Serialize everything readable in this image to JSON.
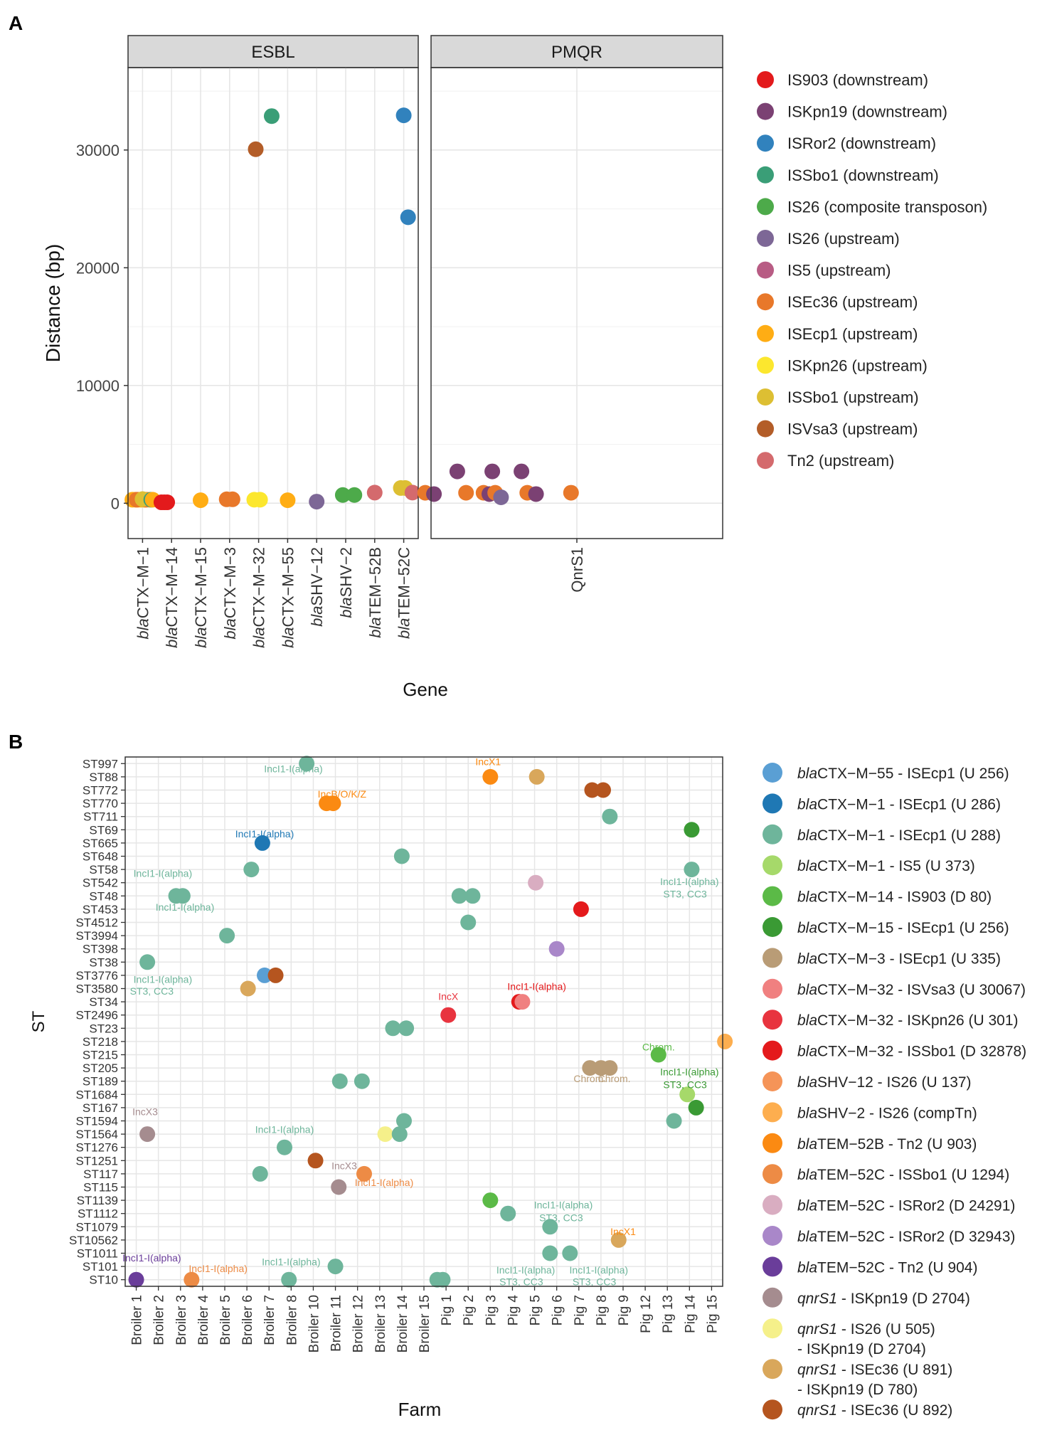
{
  "panel_labels": {
    "a": "A",
    "b": "B"
  },
  "colors": {
    "grid": "#e6e6e6",
    "strip_fill": "#d9d9d9",
    "panel_border": "#333333"
  },
  "chart_data": [
    {
      "id": "A",
      "type": "scatter",
      "title": "",
      "xlabel": "Gene",
      "ylabel": "Distance (bp)",
      "ylim": [
        -3000,
        37000
      ],
      "yticks": [
        0,
        10000,
        20000,
        30000
      ],
      "grid": true,
      "legend_position": "right",
      "facets": [
        {
          "strip": "ESBL",
          "categories": [
            {
              "prefix": "bla",
              "name": "CTX−M−1"
            },
            {
              "prefix": "bla",
              "name": "CTX−M−14"
            },
            {
              "prefix": "bla",
              "name": "CTX−M−15"
            },
            {
              "prefix": "bla",
              "name": "CTX−M−3"
            },
            {
              "prefix": "bla",
              "name": "CTX−M−32"
            },
            {
              "prefix": "bla",
              "name": "CTX−M−55"
            },
            {
              "prefix": "bla",
              "name": "SHV−12"
            },
            {
              "prefix": "bla",
              "name": "SHV−2"
            },
            {
              "prefix": "bla",
              "name": "TEM−52B"
            },
            {
              "prefix": "bla",
              "name": "TEM−52C"
            }
          ],
          "points": [
            {
              "x": 0.65,
              "y": 300,
              "s": 8
            },
            {
              "x": 0.75,
              "y": 300,
              "s": 8
            },
            {
              "x": 0.85,
              "y": 300,
              "s": 8
            },
            {
              "x": 0.95,
              "y": 300,
              "s": 8
            },
            {
              "x": 1.05,
              "y": 300,
              "s": 8
            },
            {
              "x": 1.15,
              "y": 300,
              "s": 8
            },
            {
              "x": 1.25,
              "y": 300,
              "s": 8
            },
            {
              "x": 0.8,
              "y": 300,
              "s": 7
            },
            {
              "x": 1.1,
              "y": 300,
              "s": 7
            },
            {
              "x": 1.0,
              "y": 350,
              "s": 10
            },
            {
              "x": 1.3,
              "y": 300,
              "s": 3
            },
            {
              "x": 1.35,
              "y": 300,
              "s": 8
            },
            {
              "x": 1.65,
              "y": 80,
              "s": 0
            },
            {
              "x": 1.75,
              "y": 80,
              "s": 0
            },
            {
              "x": 1.85,
              "y": 80,
              "s": 0
            },
            {
              "x": 3.0,
              "y": 256,
              "s": 8
            },
            {
              "x": 3.9,
              "y": 335,
              "s": 7
            },
            {
              "x": 4.1,
              "y": 335,
              "s": 7
            },
            {
              "x": 4.9,
              "y": 30067,
              "s": 11
            },
            {
              "x": 4.85,
              "y": 301,
              "s": 9
            },
            {
              "x": 5.05,
              "y": 301,
              "s": 9
            },
            {
              "x": 5.45,
              "y": 32878,
              "s": 3
            },
            {
              "x": 6.0,
              "y": 256,
              "s": 8
            },
            {
              "x": 7.0,
              "y": 137,
              "s": 5
            },
            {
              "x": 7.9,
              "y": 700,
              "s": 4
            },
            {
              "x": 8.3,
              "y": 700,
              "s": 4
            },
            {
              "x": 9.0,
              "y": 903,
              "s": 12
            },
            {
              "x": 9.9,
              "y": 1294,
              "s": 10
            },
            {
              "x": 10.05,
              "y": 1294,
              "s": 10
            },
            {
              "x": 10.0,
              "y": 32943,
              "s": 2
            },
            {
              "x": 10.15,
              "y": 24291,
              "s": 2
            },
            {
              "x": 10.3,
              "y": 904,
              "s": 12
            }
          ]
        },
        {
          "strip": "PMQR",
          "categories": [
            {
              "prefix": "",
              "name": "QnrS1"
            }
          ],
          "points": [
            {
              "x": 0.48,
              "y": 891,
              "s": 7
            },
            {
              "x": 0.51,
              "y": 780,
              "s": 1
            },
            {
              "x": 0.59,
              "y": 2704,
              "s": 1
            },
            {
              "x": 0.62,
              "y": 891,
              "s": 7
            },
            {
              "x": 0.68,
              "y": 891,
              "s": 7
            },
            {
              "x": 0.7,
              "y": 780,
              "s": 1
            },
            {
              "x": 0.71,
              "y": 2704,
              "s": 1
            },
            {
              "x": 0.72,
              "y": 891,
              "s": 7
            },
            {
              "x": 0.74,
              "y": 505,
              "s": 5
            },
            {
              "x": 0.81,
              "y": 2704,
              "s": 1
            },
            {
              "x": 0.83,
              "y": 891,
              "s": 7
            },
            {
              "x": 0.86,
              "y": 780,
              "s": 1
            },
            {
              "x": 0.98,
              "y": 892,
              "s": 7
            }
          ]
        }
      ],
      "legend": [
        {
          "label": "IS903 (downstream)",
          "color": "#e31a1c"
        },
        {
          "label": "ISKpn19 (downstream)",
          "color": "#7b4173"
        },
        {
          "label": "ISRor2 (downstream)",
          "color": "#3182bd"
        },
        {
          "label": "ISSbo1 (downstream)",
          "color": "#3a9e77"
        },
        {
          "label": "IS26 (composite transposon)",
          "color": "#4daa4a"
        },
        {
          "label": "IS26 (upstream)",
          "color": "#7d6796"
        },
        {
          "label": "IS5 (upstream)",
          "color": "#b85c84"
        },
        {
          "label": "ISEc36 (upstream)",
          "color": "#e8782a"
        },
        {
          "label": "ISEcp1 (upstream)",
          "color": "#ffad14"
        },
        {
          "label": "ISKpn26 (upstream)",
          "color": "#fce72e"
        },
        {
          "label": "ISSbo1 (upstream)",
          "color": "#ddbf33"
        },
        {
          "label": "ISVsa3 (upstream)",
          "color": "#b35d28"
        },
        {
          "label": "Tn2 (upstream)",
          "color": "#d46a6d"
        }
      ]
    },
    {
      "id": "B",
      "type": "scatter",
      "title": "",
      "xlabel": "Farm",
      "ylabel": "ST",
      "grid": true,
      "legend_position": "right",
      "x_categories": [
        "Broiler 1",
        "Broiler 2",
        "Broiler 3",
        "Broiler 4",
        "Broiler 5",
        "Broiler 6",
        "Broiler 7",
        "Broiler 8",
        "Broiler 10",
        "Broiler 11",
        "Broiler 12",
        "Broiler 13",
        "Broiler 14",
        "Broiler 15",
        "Pig 1",
        "Pig 2",
        "Pig 3",
        "Pig 4",
        "Pig 5",
        "Pig 6",
        "Pig 7",
        "Pig 8",
        "Pig 9",
        "Pig 12",
        "Pig 13",
        "Pig 14",
        "Pig 15"
      ],
      "y_categories": [
        "ST10",
        "ST101",
        "ST1011",
        "ST10562",
        "ST1079",
        "ST1112",
        "ST1139",
        "ST115",
        "ST117",
        "ST1251",
        "ST1276",
        "ST1564",
        "ST1594",
        "ST167",
        "ST1684",
        "ST189",
        "ST205",
        "ST215",
        "ST218",
        "ST23",
        "ST2496",
        "ST34",
        "ST3580",
        "ST3776",
        "ST38",
        "ST398",
        "ST3994",
        "ST4512",
        "ST453",
        "ST48",
        "ST542",
        "ST58",
        "ST648",
        "ST665",
        "ST69",
        "ST711",
        "ST770",
        "ST772",
        "ST88",
        "ST997"
      ],
      "points": [
        {
          "x": 1.0,
          "y": 1,
          "s": 16
        },
        {
          "x": 3.5,
          "y": 1,
          "s": 13
        },
        {
          "x": 7.9,
          "y": 1,
          "s": 2
        },
        {
          "x": 14.6,
          "y": 1,
          "s": 2
        },
        {
          "x": 14.85,
          "y": 1,
          "s": 2
        },
        {
          "x": 10.0,
          "y": 2,
          "s": 2
        },
        {
          "x": 19.7,
          "y": 3,
          "s": 2
        },
        {
          "x": 20.6,
          "y": 3,
          "s": 2
        },
        {
          "x": 22.8,
          "y": 4,
          "s": 19
        },
        {
          "x": 19.7,
          "y": 5,
          "s": 2
        },
        {
          "x": 17.8,
          "y": 6,
          "s": 2
        },
        {
          "x": 17.0,
          "y": 7,
          "s": 4
        },
        {
          "x": 10.15,
          "y": 8,
          "s": 17
        },
        {
          "x": 6.6,
          "y": 9,
          "s": 2
        },
        {
          "x": 11.3,
          "y": 9,
          "s": 13
        },
        {
          "x": 9.1,
          "y": 10,
          "s": 20
        },
        {
          "x": 7.7,
          "y": 11,
          "s": 2
        },
        {
          "x": 12.25,
          "y": 12,
          "s": 18
        },
        {
          "x": 12.9,
          "y": 12,
          "s": 2
        },
        {
          "x": 1.5,
          "y": 12,
          "s": 17
        },
        {
          "x": 13.1,
          "y": 13,
          "s": 2
        },
        {
          "x": 25.3,
          "y": 13,
          "s": 2
        },
        {
          "x": 26.3,
          "y": 14,
          "s": 5
        },
        {
          "x": 25.9,
          "y": 15,
          "s": 3
        },
        {
          "x": 10.2,
          "y": 16,
          "s": 2
        },
        {
          "x": 11.2,
          "y": 16,
          "s": 2
        },
        {
          "x": 21.5,
          "y": 17,
          "s": 6
        },
        {
          "x": 22.0,
          "y": 17,
          "s": 6
        },
        {
          "x": 22.4,
          "y": 17,
          "s": 6
        },
        {
          "x": 24.6,
          "y": 18,
          "s": 4
        },
        {
          "x": 27.6,
          "y": 19,
          "s": 11
        },
        {
          "x": 12.6,
          "y": 20,
          "s": 2
        },
        {
          "x": 13.2,
          "y": 20,
          "s": 2
        },
        {
          "x": 15.1,
          "y": 21,
          "s": 8
        },
        {
          "x": 18.3,
          "y": 22,
          "s": 9
        },
        {
          "x": 18.45,
          "y": 22,
          "s": 7
        },
        {
          "x": 6.05,
          "y": 23,
          "s": 19
        },
        {
          "x": 6.8,
          "y": 24,
          "s": 0
        },
        {
          "x": 7.3,
          "y": 24,
          "s": 20
        },
        {
          "x": 1.5,
          "y": 25,
          "s": 2
        },
        {
          "x": 20.0,
          "y": 26,
          "s": 15
        },
        {
          "x": 5.1,
          "y": 27,
          "s": 2
        },
        {
          "x": 16.0,
          "y": 28,
          "s": 2
        },
        {
          "x": 21.1,
          "y": 29,
          "s": 9
        },
        {
          "x": 15.6,
          "y": 30,
          "s": 2
        },
        {
          "x": 16.2,
          "y": 30,
          "s": 2
        },
        {
          "x": 2.8,
          "y": 30,
          "s": 2
        },
        {
          "x": 3.1,
          "y": 30,
          "s": 2
        },
        {
          "x": 19.05,
          "y": 31,
          "s": 14
        },
        {
          "x": 6.2,
          "y": 32,
          "s": 2
        },
        {
          "x": 26.1,
          "y": 32,
          "s": 2
        },
        {
          "x": 13.0,
          "y": 33,
          "s": 2
        },
        {
          "x": 6.7,
          "y": 34,
          "s": 1
        },
        {
          "x": 26.1,
          "y": 35,
          "s": 5
        },
        {
          "x": 22.4,
          "y": 36,
          "s": 2
        },
        {
          "x": 9.6,
          "y": 37,
          "s": 12
        },
        {
          "x": 9.9,
          "y": 37,
          "s": 12
        },
        {
          "x": 21.6,
          "y": 38,
          "s": 20
        },
        {
          "x": 22.1,
          "y": 38,
          "s": 20
        },
        {
          "x": 17.0,
          "y": 39,
          "s": 12
        },
        {
          "x": 19.1,
          "y": 39,
          "s": 19
        },
        {
          "x": 8.7,
          "y": 40,
          "s": 2
        }
      ],
      "annotations": [
        {
          "text": "IncI1-I(alpha)",
          "x": 8.1,
          "y": 39.6,
          "s": 2
        },
        {
          "text": "IncX1",
          "x": 16.9,
          "y": 40.15,
          "s": 12
        },
        {
          "text": "IncB/O/K/Z",
          "x": 10.3,
          "y": 37.7,
          "s": 12
        },
        {
          "text": "IncI1-I(alpha)",
          "x": 6.8,
          "y": 34.7,
          "s": 1
        },
        {
          "text": "IncI1-I(alpha)",
          "x": 2.2,
          "y": 31.7,
          "s": 2
        },
        {
          "text": "IncI1-I(alpha)",
          "x": 3.2,
          "y": 29.15,
          "s": 2
        },
        {
          "text": "IncI1-I(alpha)",
          "x": 26.0,
          "y": 31.1,
          "s": 2
        },
        {
          "text": "ST3, CC3",
          "x": 25.8,
          "y": 30.15,
          "s": 2
        },
        {
          "text": "IncI1-I(alpha)",
          "x": 2.2,
          "y": 23.7,
          "s": 2
        },
        {
          "text": "ST3, CC3",
          "x": 1.7,
          "y": 22.8,
          "s": 2
        },
        {
          "text": "IncX",
          "x": 15.1,
          "y": 22.4,
          "s": 8
        },
        {
          "text": "IncI1-I(alpha)",
          "x": 19.1,
          "y": 23.15,
          "s": 9
        },
        {
          "text": "Chrom.",
          "x": 24.6,
          "y": 18.6,
          "s": 4
        },
        {
          "text": "IncI1-I(alpha)",
          "x": 26.0,
          "y": 16.7,
          "s": 5
        },
        {
          "text": "ST3, CC3",
          "x": 25.8,
          "y": 15.75,
          "s": 5
        },
        {
          "text": "Chrom.",
          "x": 21.5,
          "y": 16.2,
          "s": 6
        },
        {
          "text": "Chrom.",
          "x": 22.6,
          "y": 16.2,
          "s": 6
        },
        {
          "text": "IncX3",
          "x": 1.4,
          "y": 13.7,
          "s": 17
        },
        {
          "text": "IncI1-I(alpha)",
          "x": 7.7,
          "y": 12.35,
          "s": 2
        },
        {
          "text": "IncX3",
          "x": 10.4,
          "y": 9.6,
          "s": 17
        },
        {
          "text": "IncI1-I(alpha)",
          "x": 12.2,
          "y": 8.35,
          "s": 13
        },
        {
          "text": "IncI1-I(alpha)",
          "x": 20.3,
          "y": 6.65,
          "s": 2
        },
        {
          "text": "ST3, CC3",
          "x": 20.2,
          "y": 5.7,
          "s": 2
        },
        {
          "text": "IncX1",
          "x": 23.0,
          "y": 4.65,
          "s": 12
        },
        {
          "text": "IncI1-I(alpha)",
          "x": 1.7,
          "y": 2.65,
          "s": 16
        },
        {
          "text": "IncI1-I(alpha)",
          "x": 4.7,
          "y": 1.85,
          "s": 13
        },
        {
          "text": "IncI1-I(alpha)",
          "x": 8.0,
          "y": 2.35,
          "s": 2
        },
        {
          "text": "IncI1-I(alpha)",
          "x": 18.6,
          "y": 1.75,
          "s": 2
        },
        {
          "text": "ST3, CC3",
          "x": 18.4,
          "y": 0.85,
          "s": 2
        },
        {
          "text": "IncI1-I(alpha)",
          "x": 21.9,
          "y": 1.75,
          "s": 2
        },
        {
          "text": "ST3, CC3",
          "x": 21.7,
          "y": 0.85,
          "s": 2
        }
      ],
      "legend": [
        {
          "prefix": "bla",
          "label": "CTX−M−55 - ISEcp1 (U 256)",
          "color": "#5a9fd4"
        },
        {
          "prefix": "bla",
          "label": "CTX−M−1 - ISEcp1 (U 286)",
          "color": "#1f78b4"
        },
        {
          "prefix": "bla",
          "label": "CTX−M−1 - ISEcp1 (U 288)",
          "color": "#6eb59b"
        },
        {
          "prefix": "bla",
          "label": "CTX−M−1 - IS5 (U 373)",
          "color": "#a6d96a"
        },
        {
          "prefix": "bla",
          "label": "CTX−M−14 - IS903 (D 80)",
          "color": "#5bba47"
        },
        {
          "prefix": "bla",
          "label": "CTX−M−15 - ISEcp1 (U 256)",
          "color": "#3a9a34"
        },
        {
          "prefix": "bla",
          "label": "CTX−M−3 - ISEcp1 (U 335)",
          "color": "#b99c76"
        },
        {
          "prefix": "bla",
          "label": "CTX−M−32 - ISVsa3 (U 30067)",
          "color": "#f08080"
        },
        {
          "prefix": "bla",
          "label": "CTX−M−32 - ISKpn26 (U 301)",
          "color": "#e8343f"
        },
        {
          "prefix": "bla",
          "label": "CTX−M−32 - ISSbo1 (D 32878)",
          "color": "#e41a1c"
        },
        {
          "prefix": "bla",
          "label": "SHV−12 - IS26 (U 137)",
          "color": "#f59458"
        },
        {
          "prefix": "bla",
          "label": "SHV−2 - IS26 (compTn)",
          "color": "#fdae4f"
        },
        {
          "prefix": "bla",
          "label": "TEM−52B - Tn2 (U 903)",
          "color": "#fb8a12"
        },
        {
          "prefix": "bla",
          "label": "TEM−52C - ISSbo1 (U 1294)",
          "color": "#ed8b45"
        },
        {
          "prefix": "bla",
          "label": "TEM−52C - ISRor2 (D 24291)",
          "color": "#d9adc1"
        },
        {
          "prefix": "bla",
          "label": "TEM−52C - ISRor2 (D 32943)",
          "color": "#a987c9"
        },
        {
          "prefix": "bla",
          "label": "TEM−52C - Tn2 (U 904)",
          "color": "#6a3d9a"
        },
        {
          "prefix": "qnrS1",
          "label": " - ISKpn19 (D 2704)",
          "color": "#a58c8f"
        },
        {
          "prefix": "qnrS1",
          "label": " - IS26 (U 505)",
          "label2": "- ISKpn19 (D 2704)",
          "color": "#f5f08a"
        },
        {
          "prefix": "qnrS1",
          "label": " - ISEc36 (U 891)",
          "label2": "- ISKpn19 (D 780)",
          "color": "#d9a75b"
        },
        {
          "prefix": "qnrS1",
          "label": " - ISEc36 (U 892)",
          "color": "#b5551f"
        }
      ]
    }
  ]
}
